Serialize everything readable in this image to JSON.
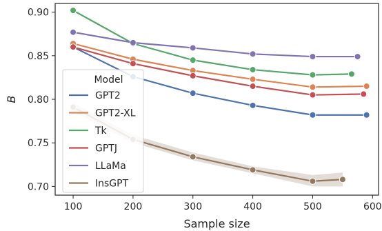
{
  "chart_data": {
    "type": "line",
    "xlabel": "Sample size",
    "ylabel": "B",
    "xlim": [
      70,
      610
    ],
    "ylim": [
      0.69,
      0.91
    ],
    "xticks": [
      100,
      200,
      300,
      400,
      500,
      600
    ],
    "yticks": [
      0.7,
      0.75,
      0.8,
      0.85,
      0.9
    ],
    "ytick_labels": [
      "0.70",
      "0.75",
      "0.80",
      "0.85",
      "0.90"
    ],
    "grid": false,
    "legend": {
      "title": "Model",
      "placement": "lower-left"
    },
    "series": [
      {
        "name": "GPT2",
        "color": "#4c72b0",
        "x": [
          100,
          200,
          300,
          400,
          500,
          590
        ],
        "y": [
          0.86,
          0.826,
          0.807,
          0.793,
          0.782,
          0.782
        ]
      },
      {
        "name": "GPT2-XL",
        "color": "#dd8452",
        "x": [
          100,
          200,
          300,
          400,
          500,
          590
        ],
        "y": [
          0.864,
          0.846,
          0.833,
          0.823,
          0.814,
          0.815
        ]
      },
      {
        "name": "Tk",
        "color": "#55a868",
        "x": [
          100,
          200,
          300,
          400,
          500,
          565
        ],
        "y": [
          0.902,
          0.864,
          0.845,
          0.834,
          0.828,
          0.829
        ]
      },
      {
        "name": "GPTJ",
        "color": "#c44e52",
        "x": [
          100,
          200,
          300,
          400,
          500,
          585
        ],
        "y": [
          0.86,
          0.841,
          0.827,
          0.815,
          0.805,
          0.806
        ]
      },
      {
        "name": "LLaMa",
        "color": "#8172b3",
        "x": [
          100,
          200,
          300,
          400,
          500,
          575
        ],
        "y": [
          0.877,
          0.865,
          0.859,
          0.852,
          0.849,
          0.849
        ]
      },
      {
        "name": "InsGPT",
        "color": "#937860",
        "x": [
          100,
          200,
          300,
          400,
          500,
          550
        ],
        "y": [
          0.791,
          0.754,
          0.734,
          0.719,
          0.706,
          0.708
        ],
        "band_low": [
          0.786,
          0.75,
          0.73,
          0.715,
          0.7,
          0.7
        ],
        "band_high": [
          0.796,
          0.759,
          0.739,
          0.723,
          0.713,
          0.716
        ]
      }
    ]
  }
}
